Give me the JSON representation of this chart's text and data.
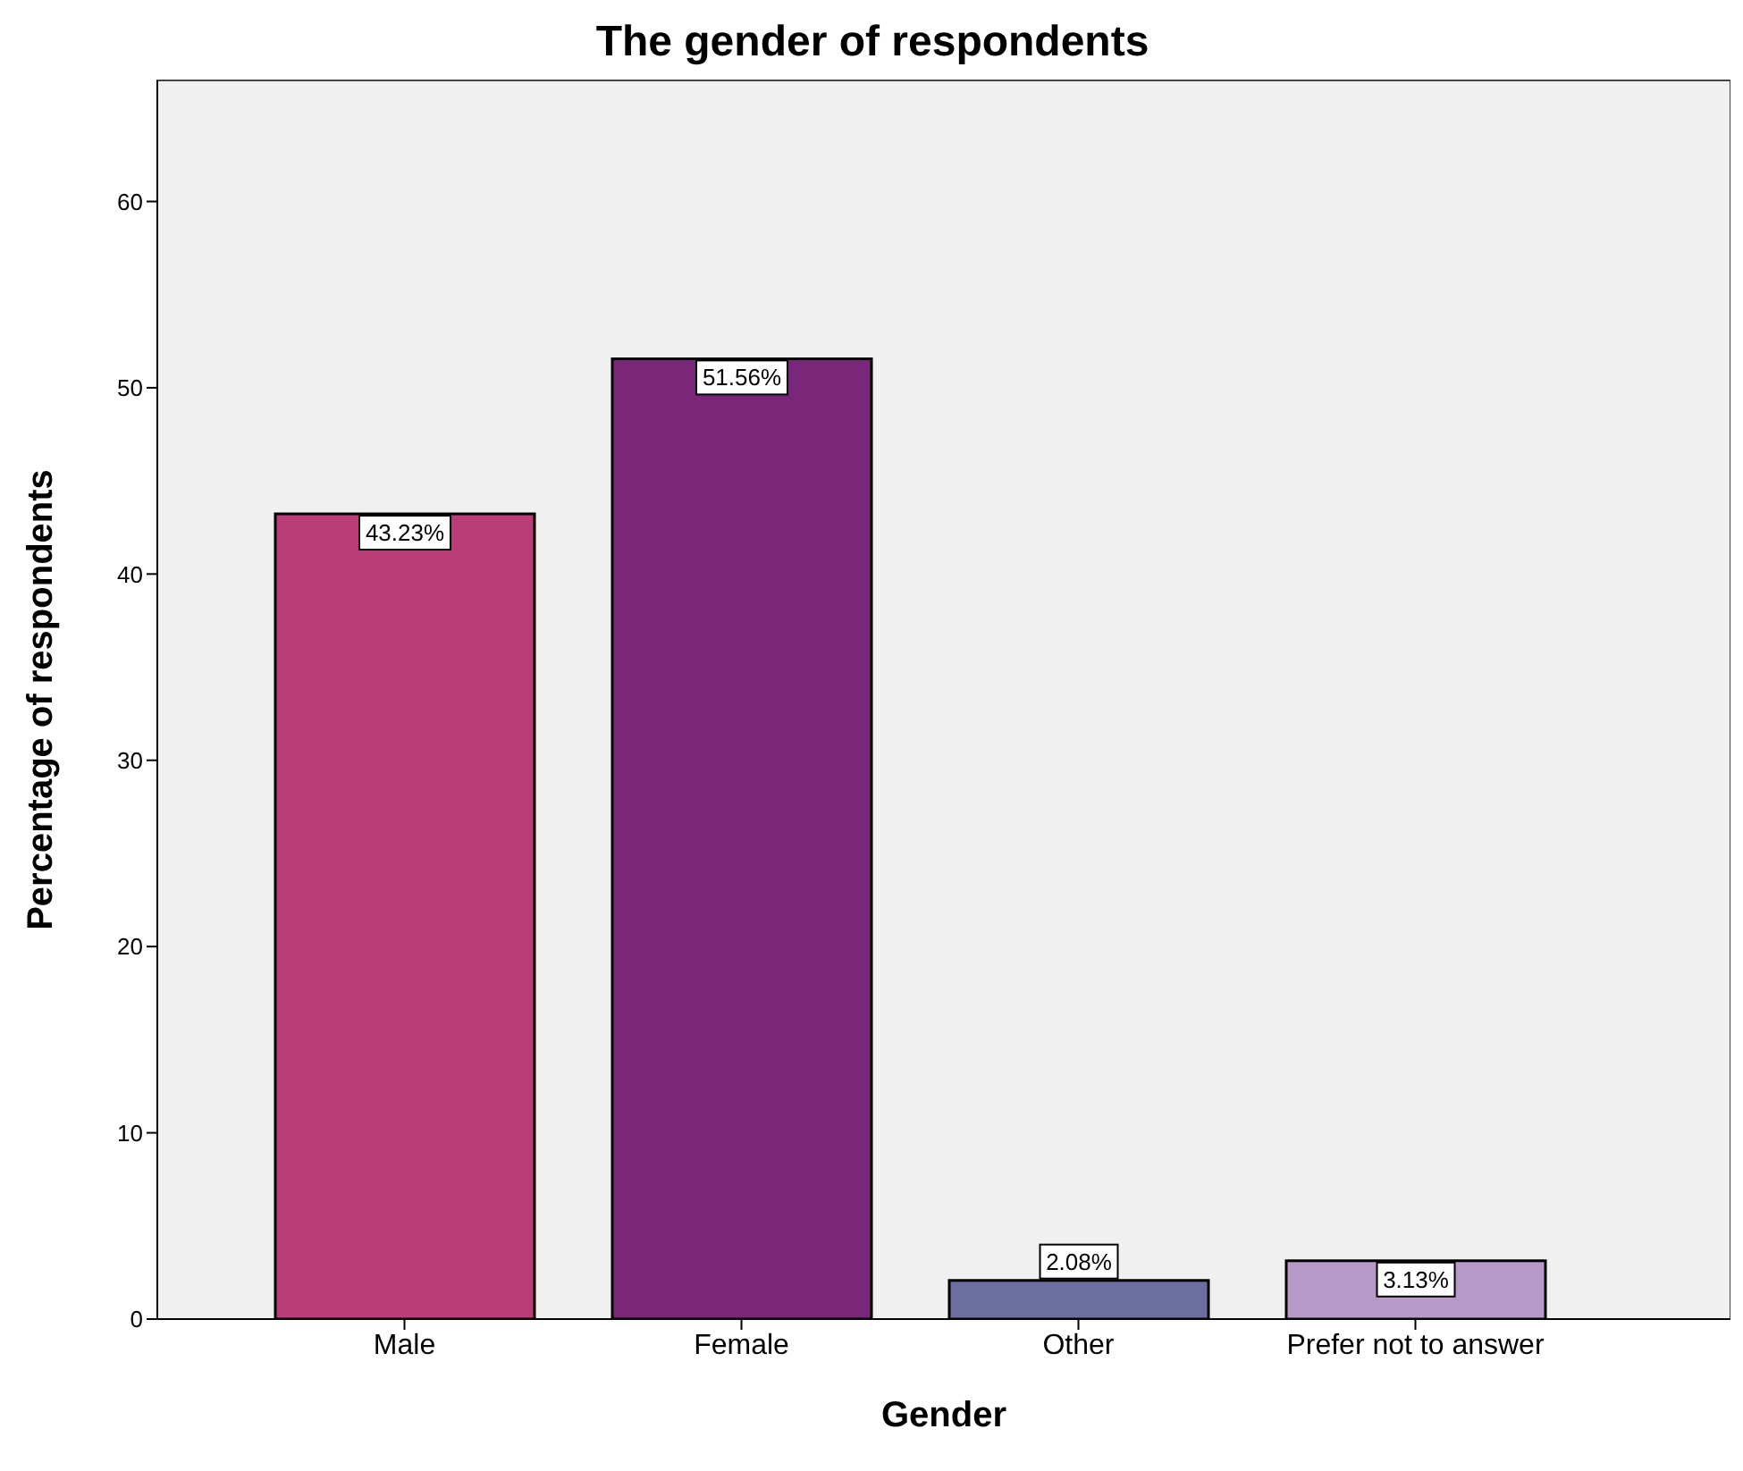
{
  "chart_data": {
    "type": "bar",
    "title": "The gender of respondents",
    "xlabel": "Gender",
    "ylabel": "Percentage of respondents",
    "categories": [
      "Male",
      "Female",
      "Other",
      "Prefer not to answer"
    ],
    "values": [
      43.23,
      51.56,
      2.08,
      3.13
    ],
    "colors": [
      "#bb3d78",
      "#7b2779",
      "#6c6ea0",
      "#b89ac9"
    ],
    "value_labels": [
      "43.23%",
      "51.56%",
      "2.08%",
      "3.13%"
    ],
    "ylim": [
      0,
      66.5
    ],
    "yticks": [
      0,
      10,
      20,
      30,
      40,
      50,
      60
    ]
  }
}
